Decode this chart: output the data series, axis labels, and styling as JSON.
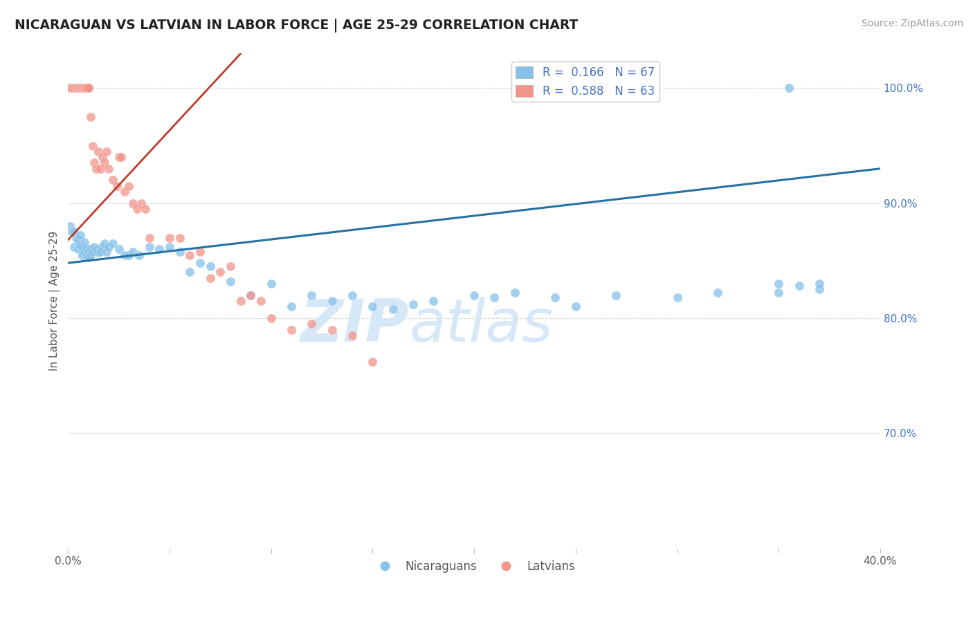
{
  "title": "NICARAGUAN VS LATVIAN IN LABOR FORCE | AGE 25-29 CORRELATION CHART",
  "source": "Source: ZipAtlas.com",
  "ylabel": "In Labor Force | Age 25-29",
  "legend_label_blue": "Nicaraguans",
  "legend_label_pink": "Latvians",
  "R_blue": 0.166,
  "N_blue": 67,
  "R_pink": 0.588,
  "N_pink": 63,
  "xlim": [
    0.0,
    0.4
  ],
  "ylim": [
    0.6,
    1.03
  ],
  "yticks": [
    0.7,
    0.8,
    0.9,
    1.0
  ],
  "ytick_labels": [
    "70.0%",
    "80.0%",
    "90.0%",
    "100.0%"
  ],
  "xticks": [
    0.0,
    0.05,
    0.1,
    0.15,
    0.2,
    0.25,
    0.3,
    0.35,
    0.4
  ],
  "xtick_labels": [
    "0.0%",
    "",
    "",
    "",
    "",
    "",
    "",
    "",
    "40.0%"
  ],
  "color_blue": "#85C1E9",
  "color_pink": "#F1948A",
  "line_color_blue": "#2471A3",
  "line_color_pink": "#C0392B",
  "blue_x": [
    0.001,
    0.002,
    0.003,
    0.003,
    0.004,
    0.005,
    0.005,
    0.006,
    0.006,
    0.007,
    0.007,
    0.007,
    0.008,
    0.008,
    0.009,
    0.009,
    0.01,
    0.01,
    0.011,
    0.011,
    0.012,
    0.013,
    0.014,
    0.015,
    0.016,
    0.017,
    0.018,
    0.019,
    0.02,
    0.022,
    0.025,
    0.028,
    0.03,
    0.032,
    0.035,
    0.04,
    0.045,
    0.05,
    0.055,
    0.06,
    0.065,
    0.07,
    0.08,
    0.09,
    0.1,
    0.11,
    0.12,
    0.13,
    0.14,
    0.15,
    0.16,
    0.17,
    0.18,
    0.2,
    0.21,
    0.22,
    0.24,
    0.25,
    0.27,
    0.3,
    0.32,
    0.35,
    0.35,
    0.36,
    0.37,
    0.37,
    0.355
  ],
  "blue_y": [
    0.88,
    0.875,
    0.875,
    0.862,
    0.87,
    0.86,
    0.868,
    0.863,
    0.872,
    0.858,
    0.855,
    0.862,
    0.857,
    0.866,
    0.855,
    0.861,
    0.858,
    0.853,
    0.86,
    0.855,
    0.858,
    0.862,
    0.86,
    0.857,
    0.858,
    0.862,
    0.865,
    0.858,
    0.862,
    0.865,
    0.86,
    0.855,
    0.855,
    0.858,
    0.855,
    0.862,
    0.86,
    0.862,
    0.858,
    0.84,
    0.848,
    0.845,
    0.832,
    0.82,
    0.83,
    0.81,
    0.82,
    0.815,
    0.82,
    0.81,
    0.808,
    0.812,
    0.815,
    0.82,
    0.818,
    0.822,
    0.818,
    0.81,
    0.82,
    0.818,
    0.822,
    0.822,
    0.83,
    0.828,
    0.825,
    0.83,
    1.0
  ],
  "pink_x": [
    0.001,
    0.001,
    0.002,
    0.002,
    0.003,
    0.003,
    0.004,
    0.004,
    0.005,
    0.005,
    0.005,
    0.006,
    0.006,
    0.006,
    0.007,
    0.007,
    0.007,
    0.007,
    0.008,
    0.008,
    0.008,
    0.009,
    0.009,
    0.009,
    0.01,
    0.01,
    0.011,
    0.012,
    0.013,
    0.014,
    0.015,
    0.016,
    0.017,
    0.018,
    0.019,
    0.02,
    0.022,
    0.024,
    0.025,
    0.026,
    0.028,
    0.03,
    0.032,
    0.034,
    0.036,
    0.038,
    0.04,
    0.05,
    0.055,
    0.06,
    0.065,
    0.07,
    0.075,
    0.08,
    0.085,
    0.09,
    0.095,
    0.1,
    0.11,
    0.12,
    0.13,
    0.14,
    0.15
  ],
  "pink_y": [
    1.0,
    1.0,
    1.0,
    1.0,
    1.0,
    1.0,
    1.0,
    1.0,
    1.0,
    1.0,
    1.0,
    1.0,
    1.0,
    1.0,
    1.0,
    1.0,
    1.0,
    1.0,
    1.0,
    1.0,
    1.0,
    1.0,
    1.0,
    1.0,
    1.0,
    1.0,
    0.975,
    0.95,
    0.935,
    0.93,
    0.945,
    0.93,
    0.94,
    0.935,
    0.945,
    0.93,
    0.92,
    0.915,
    0.94,
    0.94,
    0.91,
    0.915,
    0.9,
    0.895,
    0.9,
    0.895,
    0.87,
    0.87,
    0.87,
    0.855,
    0.858,
    0.835,
    0.84,
    0.845,
    0.815,
    0.82,
    0.815,
    0.8,
    0.79,
    0.795,
    0.79,
    0.785,
    0.762
  ],
  "watermark_zip": "ZIP",
  "watermark_atlas": "atlas",
  "watermark_color": "#D6E8F7",
  "background_color": "#FFFFFF",
  "grid_color": "#D5D8DC",
  "blue_line_x": [
    0.0,
    0.4
  ],
  "blue_line_y": [
    0.848,
    0.93
  ],
  "pink_line_x": [
    0.0,
    0.085
  ],
  "pink_line_y": [
    0.868,
    1.03
  ]
}
